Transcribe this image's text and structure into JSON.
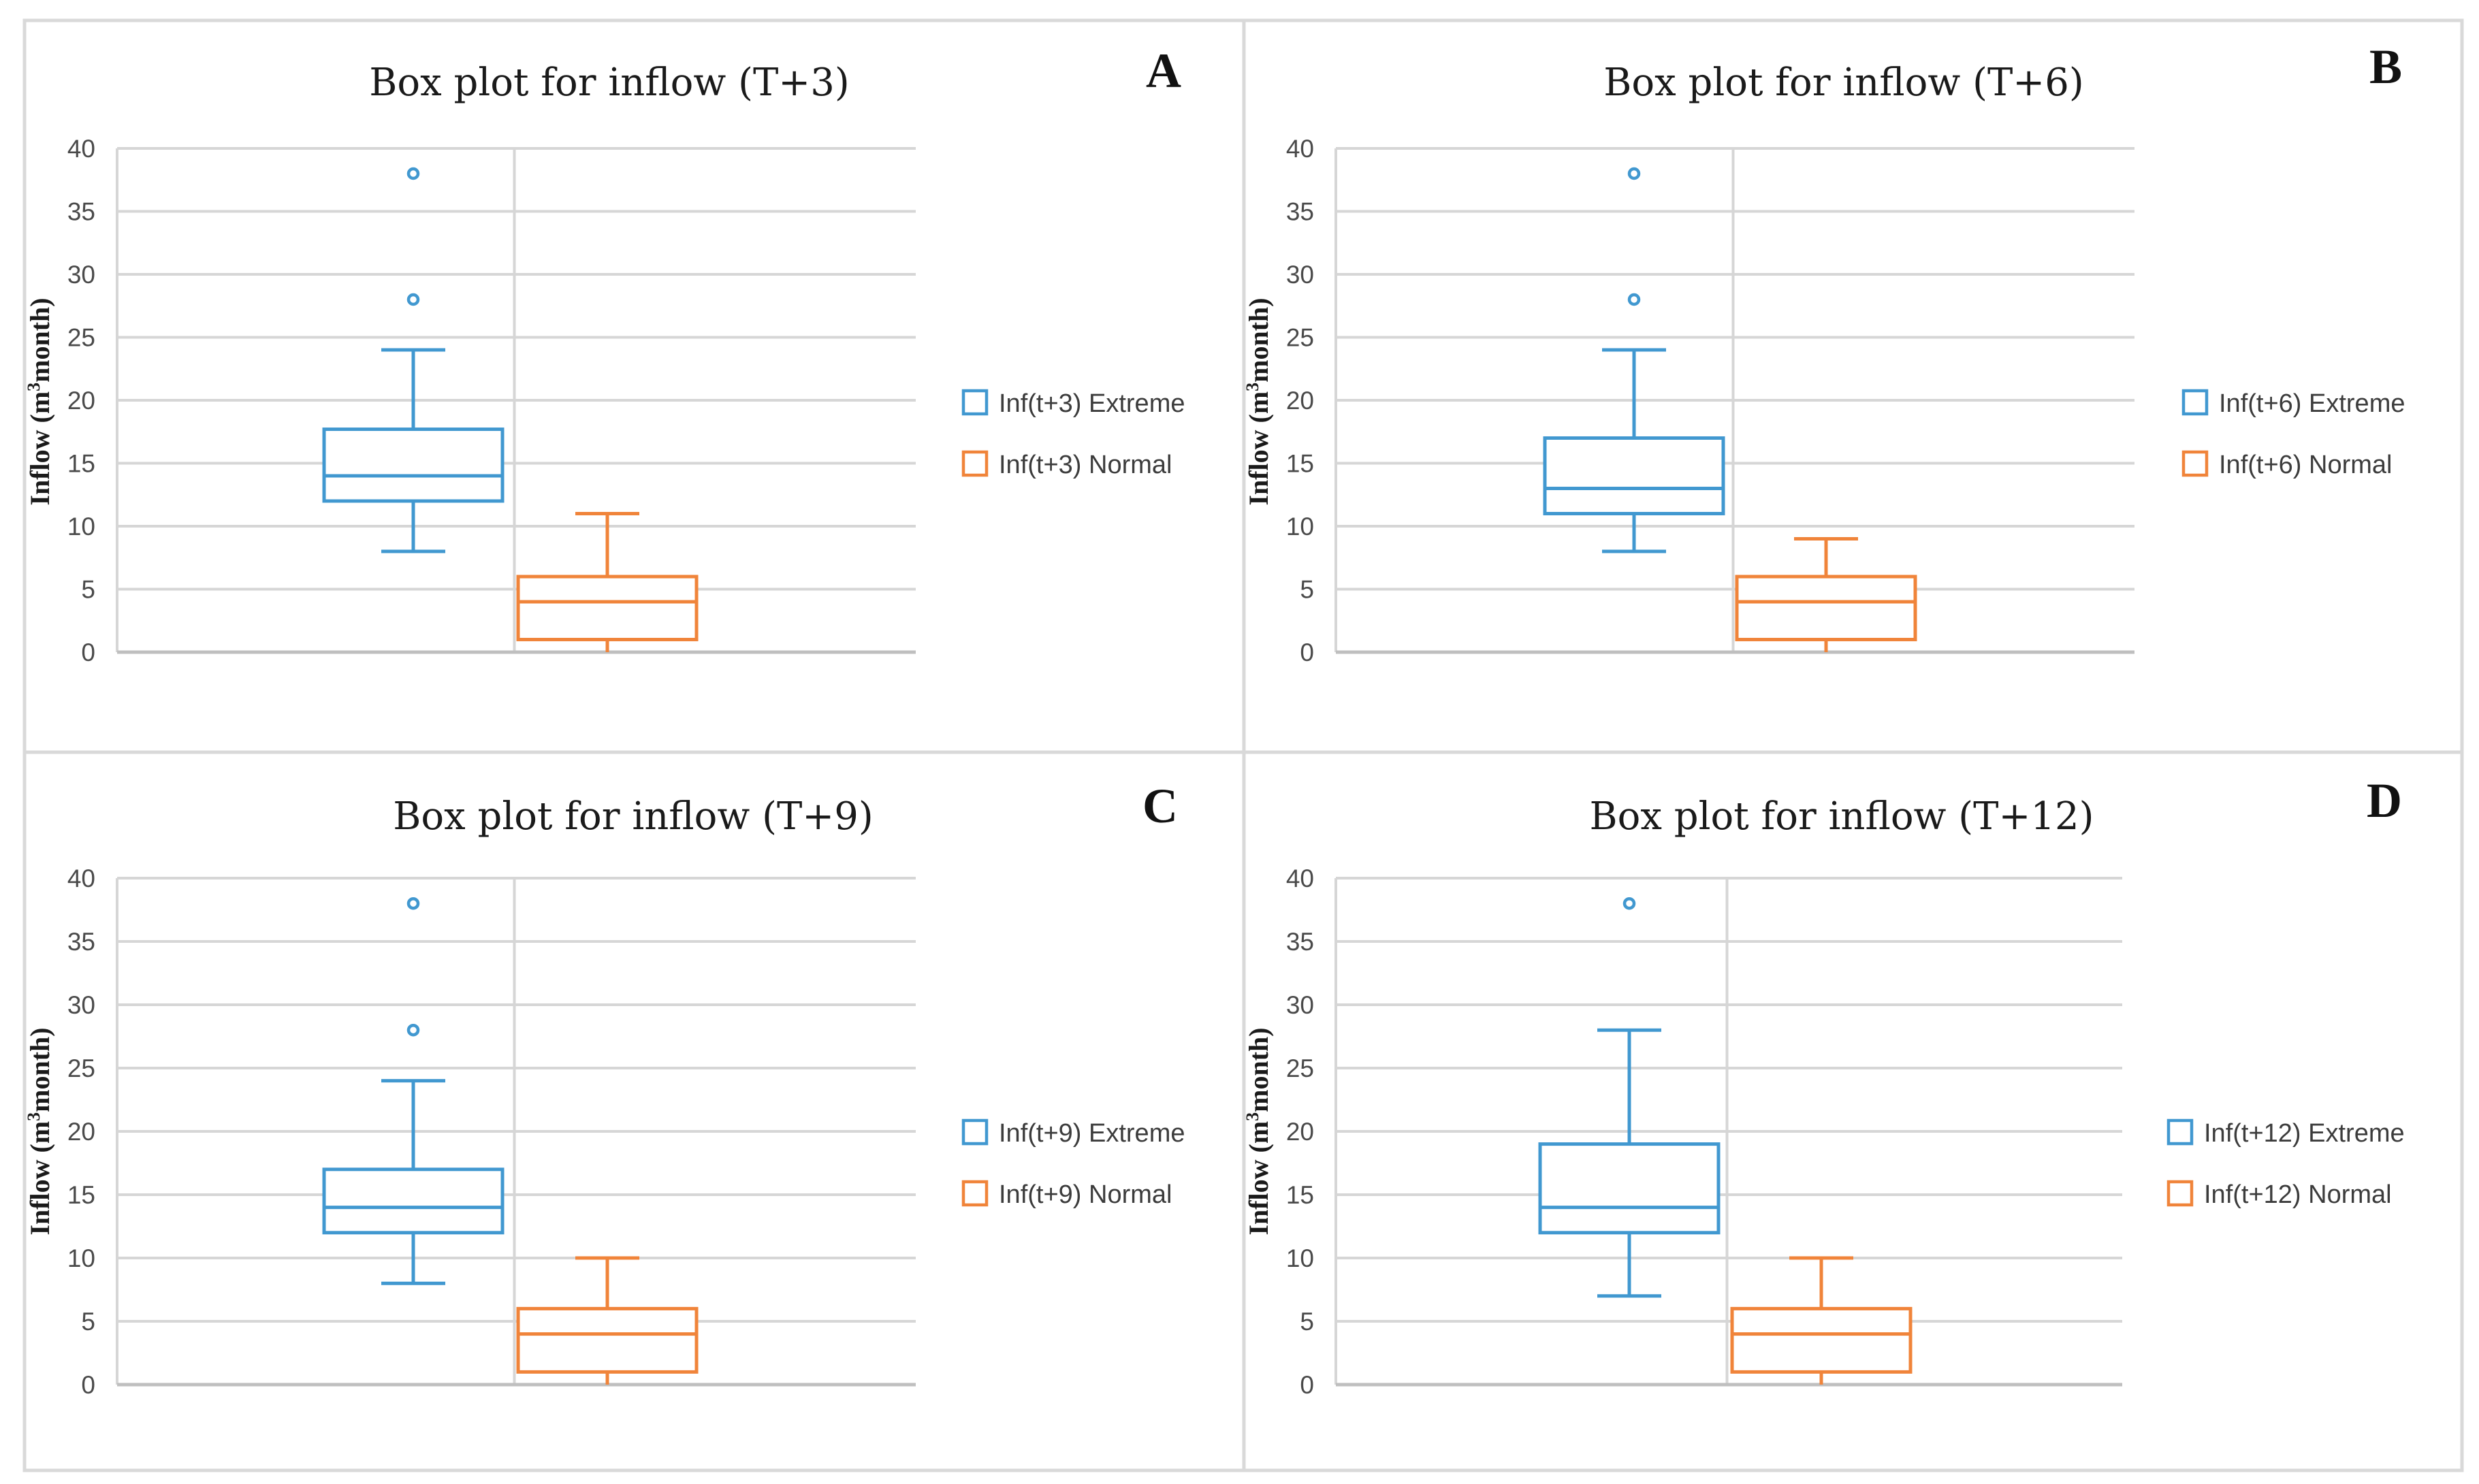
{
  "colors": {
    "extreme": "#4198D0",
    "normal": "#F0843A",
    "grid": "#D6D6D6",
    "axis": "#BFBFBF",
    "border": "#D9D9D9"
  },
  "chart_data": [
    {
      "type": "box",
      "letter": "A",
      "title": "Box plot for inflow (T+3)",
      "ylabel": "Inflow (m",
      "ylabel_sup": "3",
      "ylabel_suffix": "month)",
      "ylim": [
        0,
        40
      ],
      "yticks": [
        "40",
        "35",
        "30",
        "25",
        "20",
        "15",
        "10",
        "5",
        "0"
      ],
      "series": [
        {
          "name": "Inf(t+3) Extreme",
          "color": "extreme",
          "min": 8,
          "q1": 12,
          "median": 14,
          "q3": 17.7,
          "max": 24,
          "outliers": [
            28,
            38
          ]
        },
        {
          "name": "Inf(t+3) Normal",
          "color": "normal",
          "min": 0,
          "q1": 1,
          "median": 4,
          "q3": 6,
          "max": 11,
          "outliers": []
        }
      ]
    },
    {
      "type": "box",
      "letter": "B",
      "title": "Box plot for inflow (T+6)",
      "ylabel": "Inflow (m",
      "ylabel_sup": "3",
      "ylabel_suffix": "month)",
      "ylim": [
        0,
        40
      ],
      "yticks": [
        "40",
        "35",
        "30",
        "25",
        "20",
        "15",
        "10",
        "5",
        "0"
      ],
      "series": [
        {
          "name": "Inf(t+6) Extreme",
          "color": "extreme",
          "min": 8,
          "q1": 11,
          "median": 13,
          "q3": 17,
          "max": 24,
          "outliers": [
            28,
            38
          ]
        },
        {
          "name": "Inf(t+6) Normal",
          "color": "normal",
          "min": 0,
          "q1": 1,
          "median": 4,
          "q3": 6,
          "max": 9,
          "outliers": []
        }
      ]
    },
    {
      "type": "box",
      "letter": "C",
      "title": "Box plot for inflow (T+9)",
      "ylabel": "Inflow (m",
      "ylabel_sup": "3",
      "ylabel_suffix": "month)",
      "ylim": [
        0,
        40
      ],
      "yticks": [
        "40",
        "35",
        "30",
        "25",
        "20",
        "15",
        "10",
        "5",
        "0"
      ],
      "series": [
        {
          "name": "Inf(t+9) Extreme",
          "color": "extreme",
          "min": 8,
          "q1": 12,
          "median": 14,
          "q3": 17,
          "max": 24,
          "outliers": [
            28,
            38
          ]
        },
        {
          "name": "Inf(t+9) Normal",
          "color": "normal",
          "min": 0,
          "q1": 1,
          "median": 4,
          "q3": 6,
          "max": 10,
          "outliers": []
        }
      ]
    },
    {
      "type": "box",
      "letter": "D",
      "title": "Box plot for inflow (T+12)",
      "ylabel": "Inflow (m",
      "ylabel_sup": "3",
      "ylabel_suffix": "month)",
      "ylim": [
        0,
        40
      ],
      "yticks": [
        "40",
        "35",
        "30",
        "25",
        "20",
        "15",
        "10",
        "5",
        "0"
      ],
      "series": [
        {
          "name": "Inf(t+12) Extreme",
          "color": "extreme",
          "min": 7,
          "q1": 12,
          "median": 14,
          "q3": 19,
          "max": 28,
          "outliers": [
            38
          ]
        },
        {
          "name": "Inf(t+12) Normal",
          "color": "normal",
          "min": 0,
          "q1": 1,
          "median": 4,
          "q3": 6,
          "max": 10,
          "outliers": []
        }
      ]
    }
  ]
}
